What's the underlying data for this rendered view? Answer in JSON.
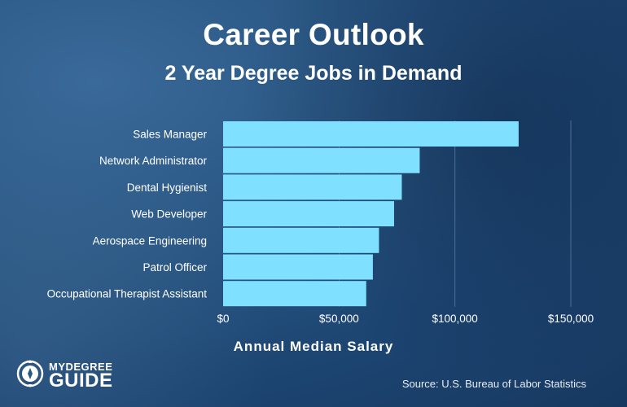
{
  "header": {
    "title": "Career Outlook",
    "subtitle": "2 Year Degree Jobs in Demand"
  },
  "logo": {
    "line1": "MYDEGREE",
    "line2": "GUIDE"
  },
  "source": "Source: U.S. Bureau of Labor Statistics",
  "colors": {
    "bar": "#7fe0ff",
    "grid": "#4a6f98",
    "text": "#ffffff"
  },
  "chart_data": {
    "type": "bar",
    "orientation": "horizontal",
    "categories": [
      "Sales Manager",
      "Network Administrator",
      "Dental Hygienist",
      "Web Developer",
      "Aerospace Engineering",
      "Patrol Officer",
      "Occupational Therapist Assistant"
    ],
    "values": [
      127490,
      84810,
      77090,
      73760,
      67240,
      64610,
      61730
    ],
    "xlabel": "Annual Median Salary",
    "ylabel": "",
    "xlim": [
      0,
      150000
    ],
    "ticks": [
      0,
      50000,
      100000,
      150000
    ],
    "tick_labels": [
      "$0",
      "$50,000",
      "$100,000",
      "$150,000"
    ],
    "grid": true
  }
}
